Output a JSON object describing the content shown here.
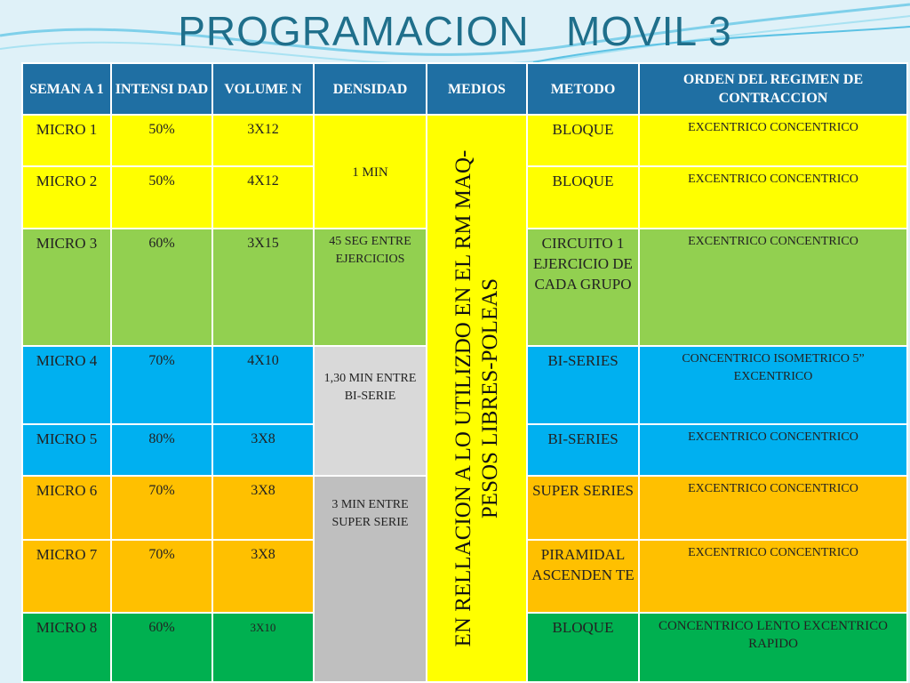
{
  "slide": {
    "title": "PROGRAMACION   MOVIL 3"
  },
  "table": {
    "headers": {
      "semana": "SEMAN A  1",
      "intensidad": "INTENSI DAD",
      "volumen": "VOLUME N",
      "densidad": "DENSIDAD",
      "medios": "MEDIOS",
      "metodo": "METODO",
      "orden": "ORDEN DEL REGIMEN  DE CONTRACCION"
    },
    "rows": [
      {
        "micro": "MICRO 1",
        "intensidad": "50%",
        "volumen": "3X12",
        "metodo": "BLOQUE",
        "orden": "EXCENTRICO CONCENTRICO"
      },
      {
        "micro": "MICRO 2",
        "intensidad": "50%",
        "volumen": "4X12",
        "metodo": "BLOQUE",
        "orden": "EXCENTRICO CONCENTRICO"
      },
      {
        "micro": "MICRO 3",
        "intensidad": "60%",
        "volumen": "3X15",
        "metodo": "CIRCUITO 1 EJERCICIO DE CADA GRUPO",
        "orden": "EXCENTRICO CONCENTRICO"
      },
      {
        "micro": "MICRO 4",
        "intensidad": "70%",
        "volumen": "4X10",
        "metodo": "BI-SERIES",
        "orden": "CONCENTRICO ISOMETRICO 5” EXCENTRICO"
      },
      {
        "micro": "MICRO 5",
        "intensidad": "80%",
        "volumen": "3X8",
        "metodo": "BI-SERIES",
        "orden": "EXCENTRICO CONCENTRICO"
      },
      {
        "micro": "MICRO 6",
        "intensidad": "70%",
        "volumen": "3X8",
        "metodo": "SUPER SERIES",
        "orden": "EXCENTRICO CONCENTRICO"
      },
      {
        "micro": "MICRO 7",
        "intensidad": "70%",
        "volumen": "3X8",
        "metodo": "PIRAMIDAL ASCENDEN TE",
        "orden": "EXCENTRICO CONCENTRICO"
      },
      {
        "micro": "MICRO 8",
        "intensidad": "60%",
        "volumen": "3X10",
        "metodo": "BLOQUE",
        "orden": "CONCENTRICO LENTO EXCENTRICO RAPIDO"
      }
    ],
    "densidad": {
      "g1": "1 MIN",
      "g2": "45 SEG ENTRE EJERCICIOS",
      "g3": "1,30 MIN ENTRE   BI-SERIE",
      "g4": "3 MIN ENTRE SUPER SERIE"
    },
    "medios": "EN RELLACION  A LO UTILIZDO EN EL RM MAQ-PESOS LIBRES-POLEAS"
  },
  "colors": {
    "header": "#1f6fa3",
    "yellow": "#ffff00",
    "light_green": "#92d050",
    "blue": "#00b0f0",
    "orange": "#ffc000",
    "green": "#00b050",
    "grey": "#d9d9d9"
  }
}
